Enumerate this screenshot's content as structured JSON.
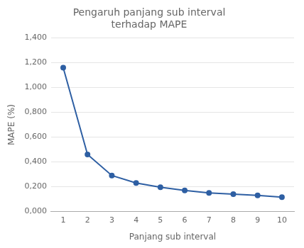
{
  "chart_data": {
    "type": "line",
    "title": "Pengaruh panjang sub interval\nterhadap MAPE",
    "x_label": "Panjang sub interval",
    "y_label": "MAPE (%)",
    "x": [
      1,
      2,
      3,
      4,
      5,
      6,
      7,
      8,
      9,
      10
    ],
    "values": [
      1.16,
      0.46,
      0.29,
      0.23,
      0.195,
      0.17,
      0.15,
      0.14,
      0.13,
      0.115
    ],
    "color": "#2E5FA3",
    "marker": "circle",
    "xlim": [
      0.5,
      10.5
    ],
    "xticks": [
      1,
      2,
      3,
      4,
      5,
      6,
      7,
      8,
      9,
      10
    ],
    "ylim": [
      0,
      1.4
    ],
    "yticks": [
      {
        "value": 0.0,
        "label": "0,000"
      },
      {
        "value": 0.2,
        "label": "0,200"
      },
      {
        "value": 0.4,
        "label": "0,400"
      },
      {
        "value": 0.6,
        "label": "0,600"
      },
      {
        "value": 0.8,
        "label": "0,800"
      },
      {
        "value": 1.0,
        "label": "1,000"
      },
      {
        "value": 1.2,
        "label": "1,200"
      },
      {
        "value": 1.4,
        "label": "1,400"
      }
    ],
    "grid": true
  }
}
